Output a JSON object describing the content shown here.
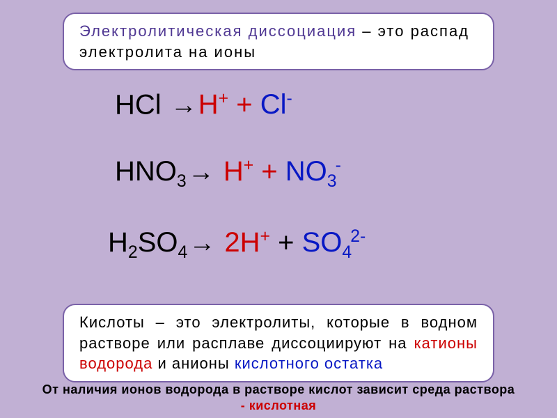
{
  "colors": {
    "bg": "#c1b0d4",
    "box_border": "#7a62a8",
    "text_dark": "#000000",
    "def_title": "#503893",
    "black": "#000000",
    "red": "#cc0000",
    "blue": "#0818c4",
    "footer": "#000000",
    "footer_red": "#cc0000"
  },
  "definition_top": {
    "title": "Электролитическая диссоциация",
    "rest": " – это распад электролита на ионы",
    "font_size": 22
  },
  "equations": {
    "hcl": {
      "lhs": "HCl ",
      "arrow": "→",
      "h_coef": "",
      "h": "H",
      "h_sup": "+",
      "plus": " + ",
      "anion": "Cl",
      "anion_sup": "-",
      "anion_sub": ""
    },
    "hno3": {
      "lhs": "HNO",
      "lhs_sub": "3",
      "arrow": "→",
      "h_coef": " ",
      "h": "H",
      "h_sup": "+",
      "plus": " +  ",
      "anion": "NO",
      "anion_sub": "3",
      "anion_sup": "-"
    },
    "h2so4": {
      "lhs_pre": "H",
      "lhs_sub1": "2",
      "lhs_mid": "SO",
      "lhs_sub2": "4",
      "arrow": "→",
      "h_coef": " 2",
      "h": "H",
      "h_sup": "+",
      "plus": " + ",
      "anion": "SO",
      "anion_sub": "4",
      "anion_sup": "2-"
    }
  },
  "definition_bottom": {
    "word1": "Кислоты",
    "part1": " – это электролиты, которые в водном растворе или расплаве диссоциируют на ",
    "kation": "катионы водорода",
    "part2": " и анионы ",
    "anion": "кислотного остатка",
    "font_size": 22
  },
  "footer": {
    "line1": "От наличия ионов водорода в растворе кислот зависит среда раствора",
    "line2": "- кислотная"
  }
}
